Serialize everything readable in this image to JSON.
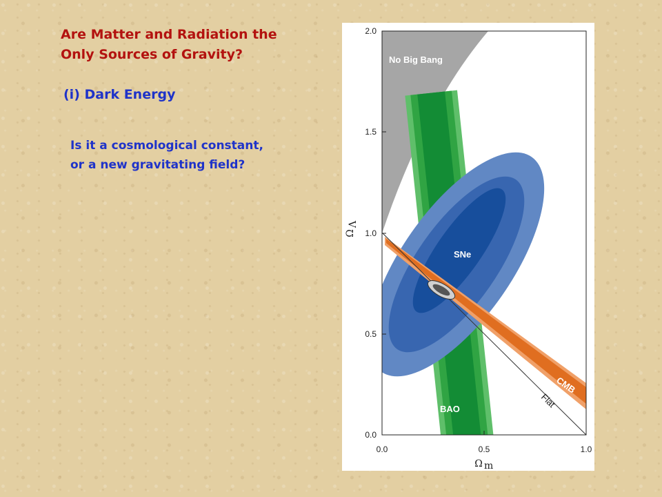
{
  "slide": {
    "title_lines": [
      "Are Matter and Radiation the",
      "Only Sources of Gravity?"
    ],
    "subtitle": "(i) Dark Energy",
    "question_lines": [
      "Is it a cosmological constant,",
      "or a new gravitating field?"
    ]
  },
  "figure": {
    "x_axis": {
      "symbol": "Ω",
      "subscript": "m",
      "range": [
        0.0,
        1.0
      ],
      "ticks": [
        "0.0",
        "0.5",
        "1.0"
      ]
    },
    "y_axis": {
      "symbol": "Ω",
      "subscript": "Λ",
      "range": [
        0.0,
        2.0
      ],
      "ticks": [
        "0.0",
        "0.5",
        "1.0",
        "1.5",
        "2.0"
      ]
    },
    "regions": {
      "no_big_bang": "No Big Bang",
      "sne": "SNe",
      "bao": "BAO",
      "cmb": "CMB",
      "flat": "Flat"
    },
    "colors": {
      "no_big_bang": "#a6a6a6",
      "sne_outer": "#6188c4",
      "sne_mid": "#3866b0",
      "sne_inner": "#174e9c",
      "bao_outer": "#5fbf6a",
      "bao_mid": "#30a443",
      "bao_inner": "#138c35",
      "cmb_outer": "#f0a068",
      "cmb_inner": "#e06e20",
      "intersection": "#d0d0d0",
      "flat_line": "#333333"
    }
  }
}
